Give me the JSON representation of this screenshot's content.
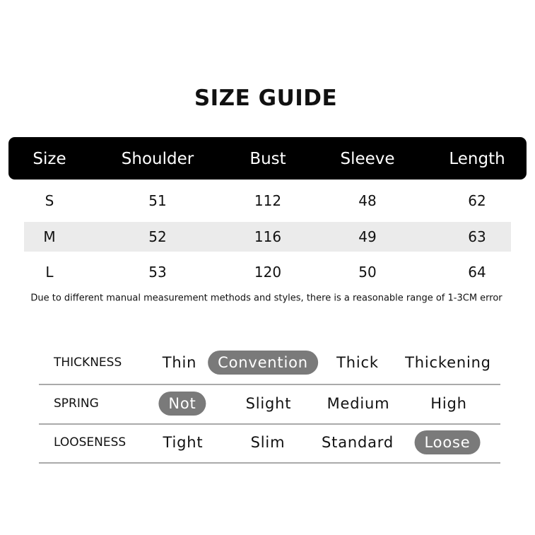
{
  "title": "SIZE GUIDE",
  "size_table": {
    "headers": [
      "Size",
      "Shoulder",
      "Bust",
      "Sleeve",
      "Length"
    ],
    "rows": [
      [
        "S",
        "51",
        "112",
        "48",
        "62"
      ],
      [
        "M",
        "52",
        "116",
        "49",
        "63"
      ],
      [
        "L",
        "53",
        "120",
        "50",
        "64"
      ]
    ],
    "highlighted_row": 1
  },
  "note": "Due to different manual measurement methods and styles, there is a reasonable range of 1-3CM error",
  "attributes": [
    {
      "label": "THICKNESS",
      "options": [
        "Thin",
        "Convention",
        "Thick",
        "Thickening"
      ],
      "selected": 1
    },
    {
      "label": "SPRING",
      "options": [
        "Not",
        "Slight",
        "Medium",
        "High"
      ],
      "selected": 0
    },
    {
      "label": "LOOSENESS",
      "options": [
        "Tight",
        "Slim",
        "Standard",
        "Loose"
      ],
      "selected": 3
    }
  ],
  "colors": {
    "header_bg": "#000000",
    "band_bg": "#ebebeb",
    "selected_pill": "#7a7a7a"
  }
}
